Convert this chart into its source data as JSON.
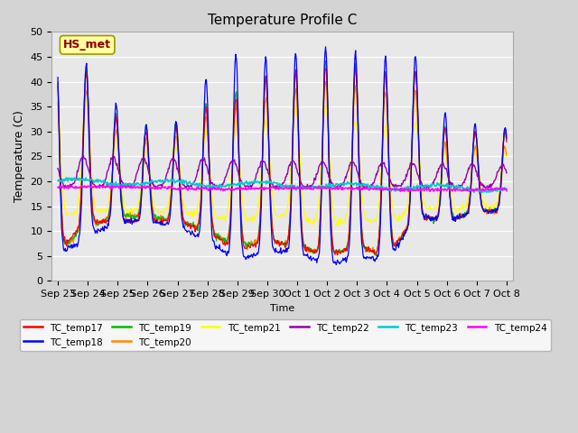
{
  "title": "Temperature Profile C",
  "xlabel": "Time",
  "ylabel": "Temperature (C)",
  "ylim": [
    0,
    50
  ],
  "background_color": "#e0e0e0",
  "plot_bg_color": "#e8e8e8",
  "annotation_text": "HS_met",
  "annotation_color": "#8B0000",
  "annotation_bg": "#FFFFA0",
  "series_colors": {
    "TC_temp17": "#FF0000",
    "TC_temp18": "#0000FF",
    "TC_temp19": "#00BB00",
    "TC_temp20": "#FF8800",
    "TC_temp21": "#FFFF00",
    "TC_temp22": "#9900AA",
    "TC_temp23": "#00CCCC",
    "TC_temp24": "#FF00FF"
  },
  "x_tick_labels": [
    "Sep 23",
    "Sep 24",
    "Sep 25",
    "Sep 26",
    "Sep 27",
    "Sep 28",
    "Sep 29",
    "Sep 30",
    "Oct 1",
    "Oct 2",
    "Oct 3",
    "Oct 4",
    "Oct 5",
    "Oct 6",
    "Oct 7",
    "Oct 8"
  ],
  "x_tick_positions": [
    0,
    1,
    2,
    3,
    4,
    5,
    6,
    7,
    8,
    9,
    10,
    11,
    12,
    13,
    14,
    15
  ],
  "yticks": [
    0,
    5,
    10,
    15,
    20,
    25,
    30,
    35,
    40,
    45,
    50
  ]
}
